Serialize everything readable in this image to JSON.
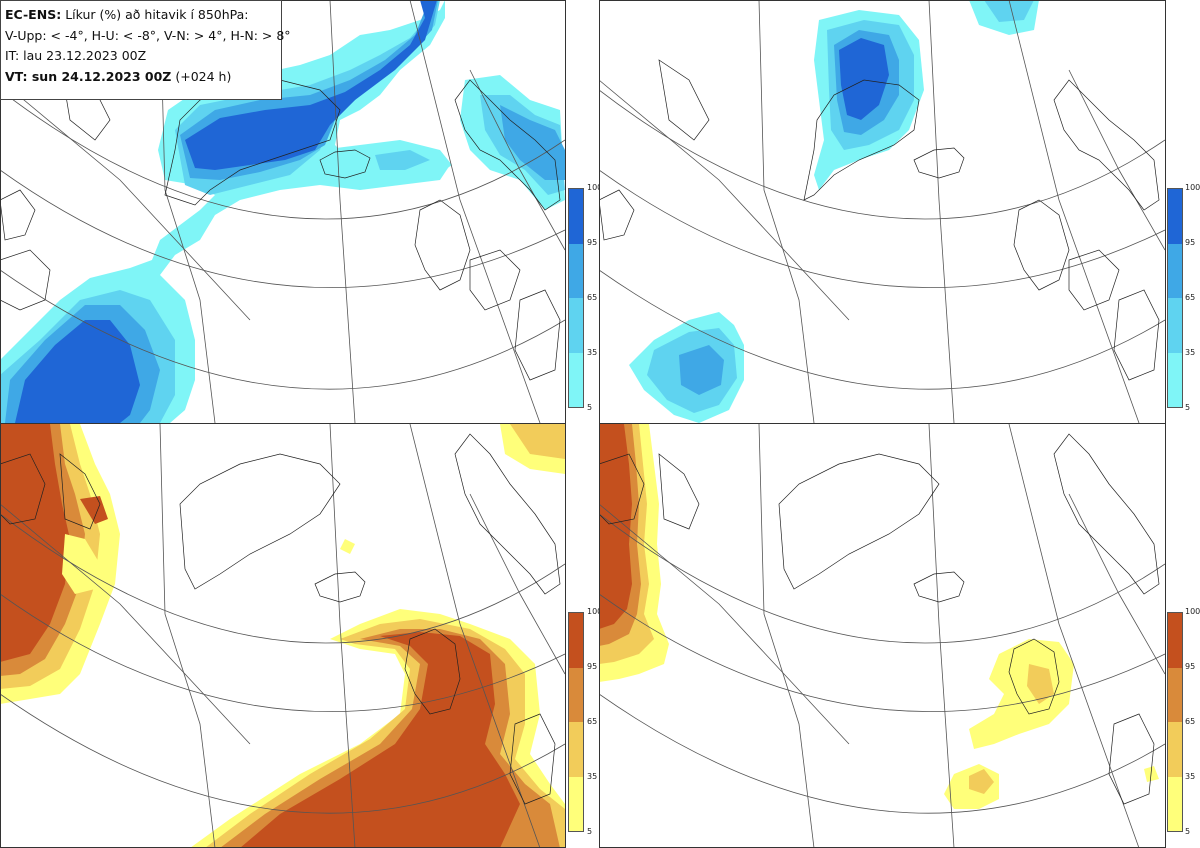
{
  "header": {
    "line1_bold": "EC-ENS:",
    "line1_rest": "Líkur (%) að hitavik í 850hPa:",
    "line2": "V-Upp: < -4°, H-U: < -8°, V-N: > 4°, H-N: > 8°",
    "line3": "IT: lau 23.12.2023 00Z",
    "line4_bold": "VT: sun 24.12.2023 00Z",
    "line4_rest": "(+024 h)"
  },
  "colorbar": {
    "ticks": [
      "100",
      "95",
      "65",
      "35",
      "5"
    ]
  },
  "palettes": {
    "cold": [
      "#7ff5f7",
      "#5fd3f0",
      "#3fa8e6",
      "#1f66d6"
    ],
    "warm": [
      "#ffff7a",
      "#f2cc5a",
      "#d98a3a",
      "#c4501e"
    ]
  },
  "panels": [
    {
      "id": "tl",
      "name": "V-Upp",
      "palette": "cold"
    },
    {
      "id": "tr",
      "name": "H-U",
      "palette": "cold"
    },
    {
      "id": "bl",
      "name": "V-N",
      "palette": "warm"
    },
    {
      "id": "br",
      "name": "H-N",
      "palette": "warm"
    }
  ]
}
